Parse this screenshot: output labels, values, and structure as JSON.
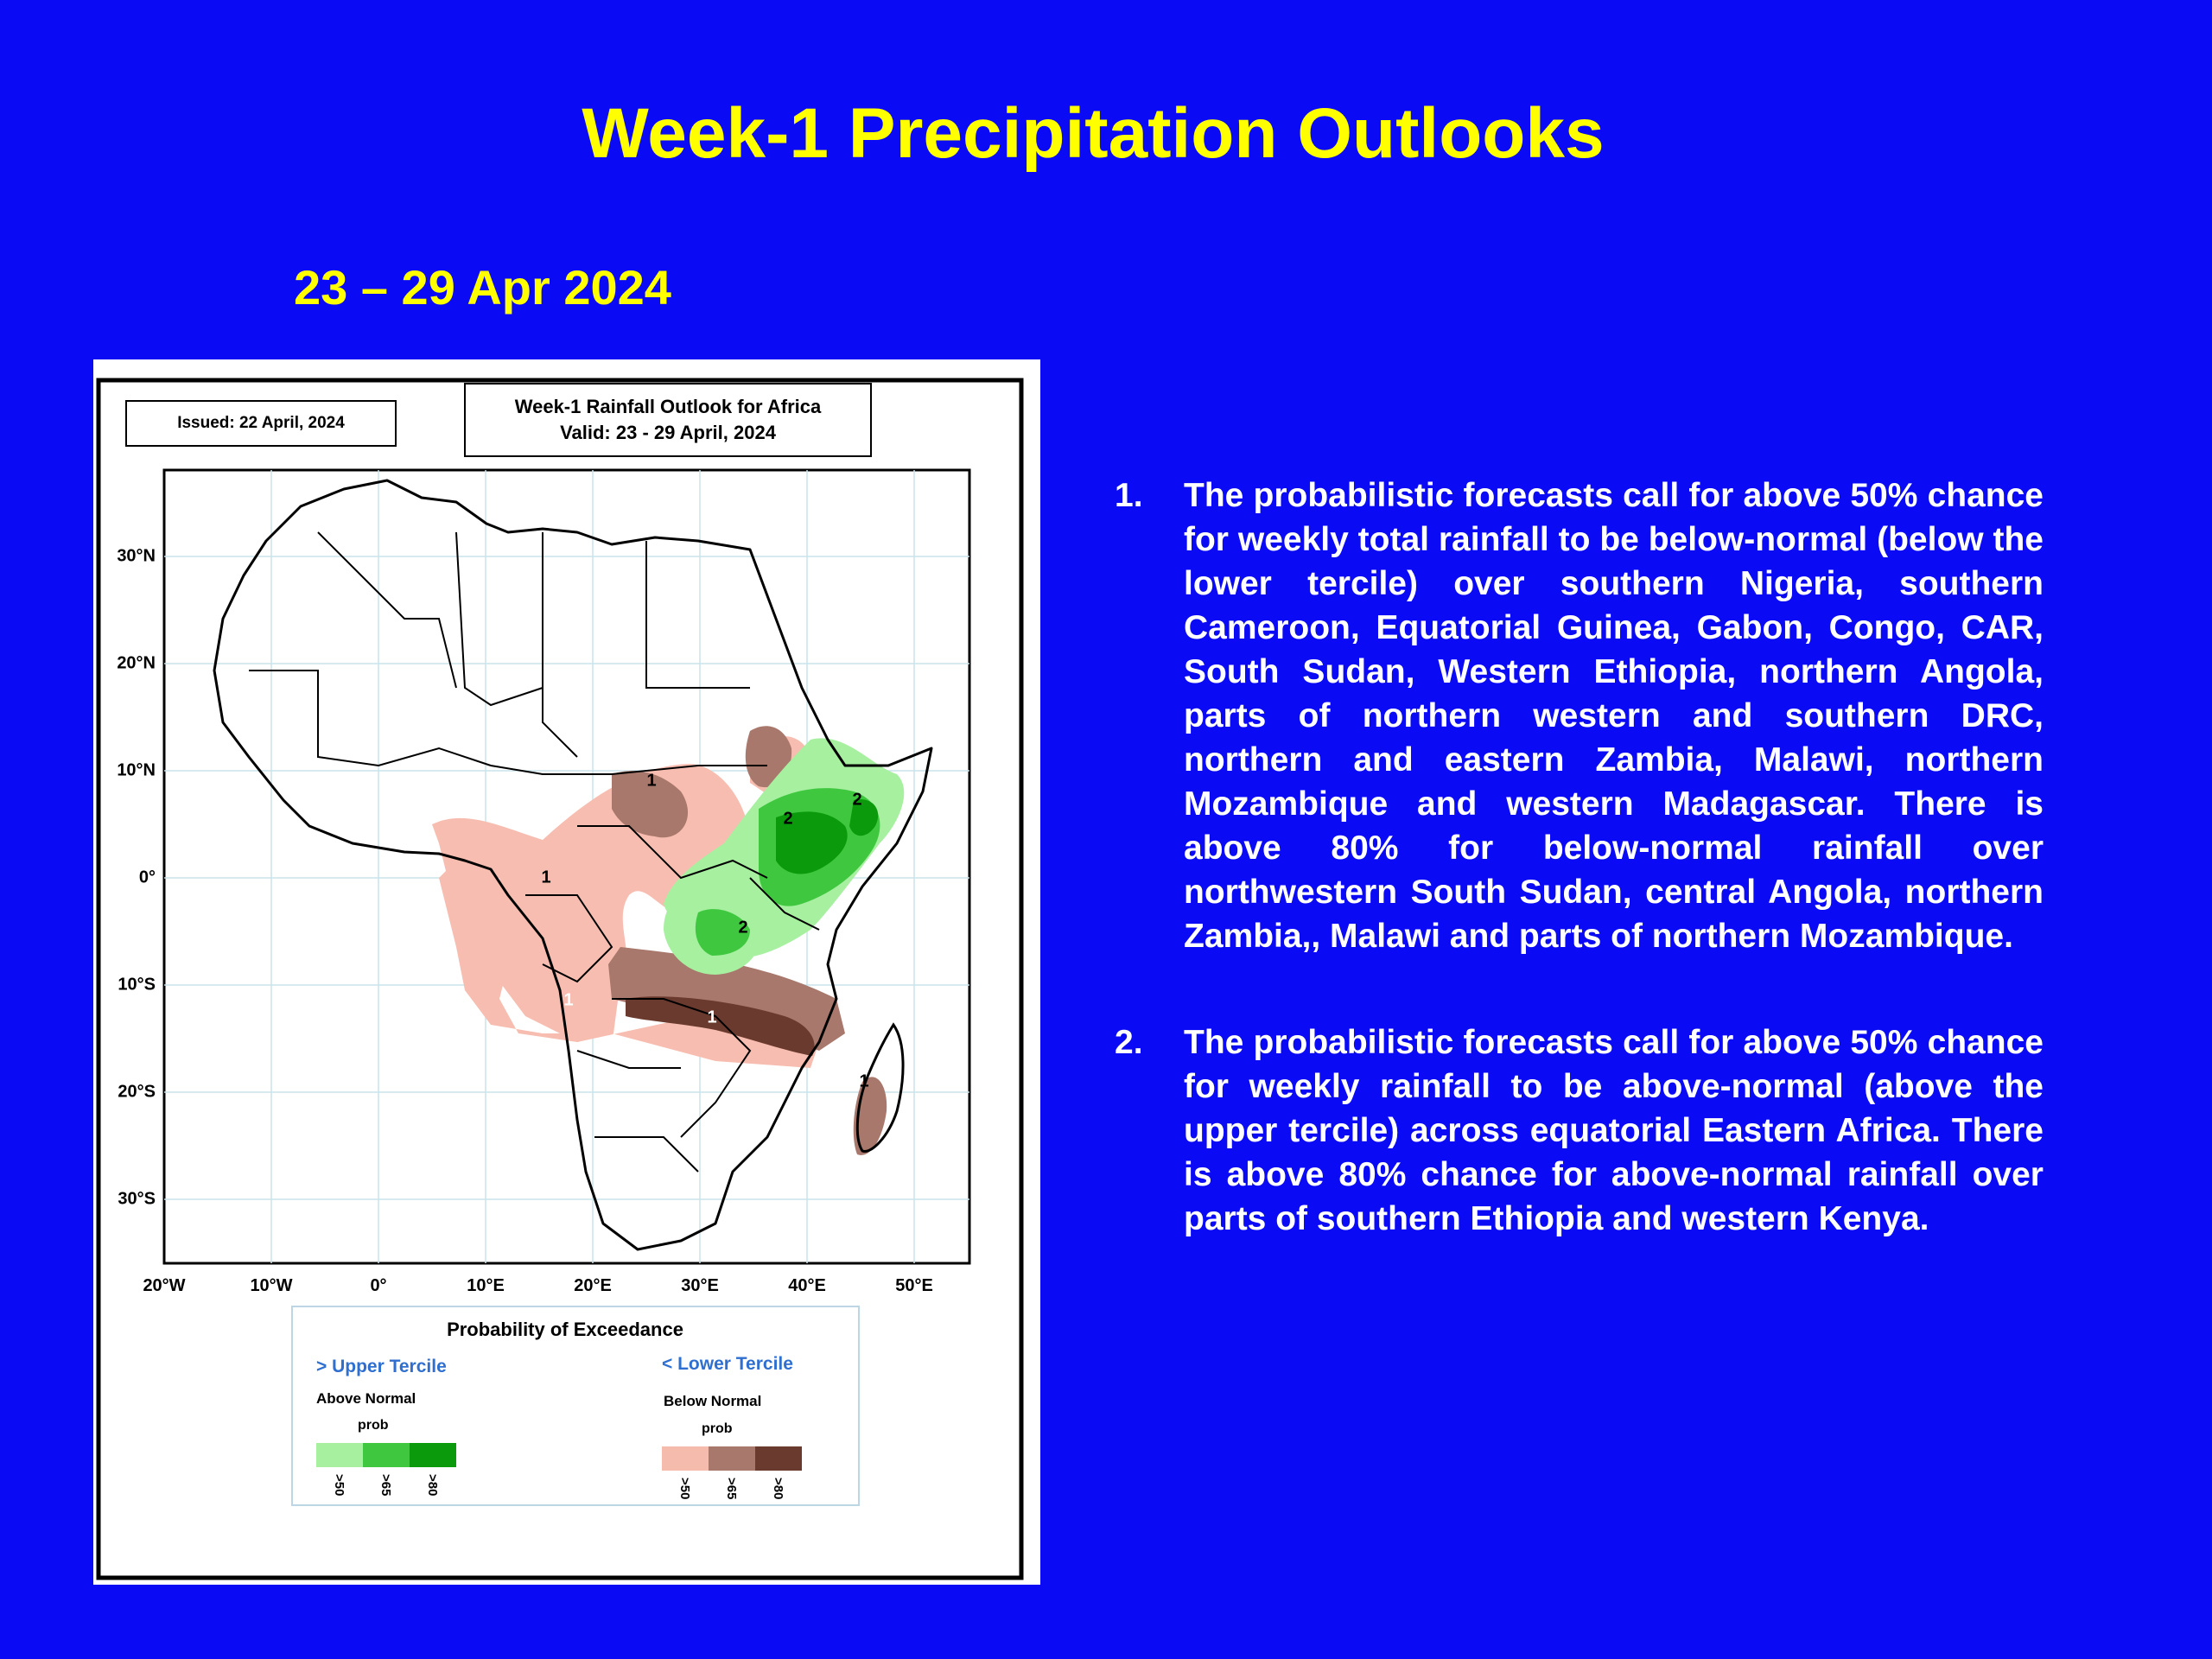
{
  "slide": {
    "title": "Week-1 Precipitation Outlooks",
    "date_range": "23 – 29 Apr 2024"
  },
  "map": {
    "issued": "Issued: 22 April, 2024",
    "title_line1": "Week-1 Rainfall Outlook for Africa",
    "title_line2": "Valid: 23  - 29 April,  2024",
    "lat_labels": [
      "30°N",
      "20°N",
      "10°N",
      "0°",
      "10°S",
      "20°S",
      "30°S"
    ],
    "lon_labels": [
      "20°W",
      "10°W",
      "0°",
      "10°E",
      "20°E",
      "30°E",
      "40°E",
      "50°E"
    ],
    "region_labels": [
      "1",
      "2",
      "2",
      "1",
      "2",
      "1",
      "1",
      "1"
    ],
    "legend": {
      "title": "Probability of Exceedance",
      "upper_heading": "> Upper Tercile",
      "upper_sub": "Above Normal",
      "upper_prob": "prob",
      "lower_heading": "< Lower Tercile",
      "lower_sub": "Below Normal",
      "lower_prob": "prob",
      "ticks": [
        ">50",
        ">65",
        ">80"
      ],
      "above_colors": [
        "#a6f0a0",
        "#3fc83f",
        "#0b9a0b"
      ],
      "below_colors": [
        "#f5bcae",
        "#a8786c",
        "#6a3a2e"
      ]
    }
  },
  "bullets": [
    {
      "num": "1.",
      "text": "The probabilistic forecasts call for above 50% chance for weekly total rainfall to be below-normal (below the lower tercile) over southern Nigeria, southern Cameroon, Equatorial Guinea, Gabon, Congo, CAR, South Sudan, Western Ethiopia, northern Angola, parts of northern western and southern DRC, northern and eastern Zambia, Malawi, northern Mozambique and western Madagascar. There is above 80% for below-normal rainfall over northwestern South Sudan, central Angola, northern Zambia,, Malawi and parts of northern Mozambique."
    },
    {
      "num": "2.",
      "text": "The probabilistic forecasts call for above 50% chance for weekly rainfall to be above-normal (above the upper tercile) across equatorial Eastern Africa. There is above 80% chance for above-normal rainfall over parts of southern Ethiopia and western Kenya."
    }
  ]
}
